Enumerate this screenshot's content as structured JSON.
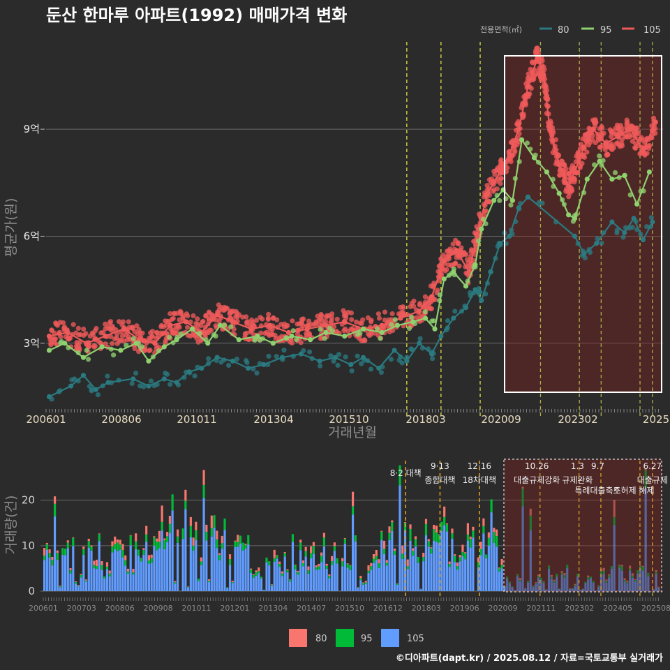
{
  "chart_data": [
    {
      "type": "scatter-line",
      "title": "둔산 한마루 아파트(1992) 매매가격 변화",
      "xlabel": "거래년월",
      "ylabel": "평균가(원)",
      "x_ticks": [
        "200601",
        "200806",
        "201011",
        "201304",
        "201510",
        "201803",
        "202009",
        "202302",
        "2025"
      ],
      "y_ticks": [
        {
          "label": "3억",
          "value": 3
        },
        {
          "label": "6억",
          "value": 6
        },
        {
          "label": "9억",
          "value": 9
        }
      ],
      "ylim": [
        1.0,
        11.8
      ],
      "x_range": [
        "2006-01",
        "2025-08"
      ],
      "legend_title": "전용면적(㎡)",
      "series": [
        {
          "name": "80",
          "color": "#2a7a80",
          "points": [
            [
              2006.1,
              1.5
            ],
            [
              2006.8,
              1.8
            ],
            [
              2007.2,
              2.1
            ],
            [
              2007.6,
              1.7
            ],
            [
              2008.0,
              1.9
            ],
            [
              2008.8,
              2.0
            ],
            [
              2009.3,
              1.8
            ],
            [
              2009.8,
              2.0
            ],
            [
              2010.2,
              1.9
            ],
            [
              2010.6,
              2.2
            ],
            [
              2011.0,
              2.3
            ],
            [
              2011.5,
              2.6
            ],
            [
              2012.0,
              2.5
            ],
            [
              2012.5,
              2.3
            ],
            [
              2013.0,
              2.4
            ],
            [
              2013.6,
              2.6
            ],
            [
              2014.2,
              2.7
            ],
            [
              2014.8,
              2.5
            ],
            [
              2015.3,
              2.6
            ],
            [
              2015.8,
              2.4
            ],
            [
              2016.2,
              2.6
            ],
            [
              2016.7,
              2.3
            ],
            [
              2017.2,
              2.8
            ],
            [
              2017.6,
              2.5
            ],
            [
              2018.0,
              3.0
            ],
            [
              2018.4,
              2.7
            ],
            [
              2018.7,
              3.2
            ],
            [
              2019.1,
              3.7
            ],
            [
              2019.5,
              4.0
            ],
            [
              2019.8,
              4.5
            ],
            [
              2020.0,
              4.2
            ],
            [
              2020.3,
              5.0
            ],
            [
              2020.6,
              5.8
            ],
            [
              2020.9,
              6.0
            ],
            [
              2021.2,
              6.8
            ],
            [
              2021.5,
              7.1
            ],
            [
              2023.0,
              6.0
            ],
            [
              2023.3,
              5.5
            ],
            [
              2023.7,
              5.8
            ],
            [
              2024.2,
              6.4
            ],
            [
              2024.6,
              6.1
            ],
            [
              2024.9,
              6.5
            ],
            [
              2025.2,
              5.9
            ],
            [
              2025.5,
              6.4
            ]
          ]
        },
        {
          "name": "95",
          "color": "#8fd16f",
          "points": [
            [
              2006.1,
              2.8
            ],
            [
              2006.6,
              3.0
            ],
            [
              2007.2,
              2.6
            ],
            [
              2007.8,
              2.9
            ],
            [
              2008.4,
              2.8
            ],
            [
              2008.9,
              3.0
            ],
            [
              2009.3,
              2.5
            ],
            [
              2009.8,
              2.9
            ],
            [
              2010.2,
              3.1
            ],
            [
              2010.7,
              3.4
            ],
            [
              2011.2,
              3.0
            ],
            [
              2011.6,
              3.5
            ],
            [
              2012.2,
              3.1
            ],
            [
              2012.8,
              3.2
            ],
            [
              2013.3,
              3.0
            ],
            [
              2013.9,
              3.2
            ],
            [
              2014.5,
              3.1
            ],
            [
              2015.0,
              3.3
            ],
            [
              2015.6,
              3.2
            ],
            [
              2016.2,
              3.4
            ],
            [
              2016.8,
              3.3
            ],
            [
              2017.3,
              3.5
            ],
            [
              2017.8,
              3.6
            ],
            [
              2018.2,
              3.7
            ],
            [
              2018.5,
              3.4
            ],
            [
              2018.8,
              4.8
            ],
            [
              2019.1,
              5.0
            ],
            [
              2019.5,
              4.6
            ],
            [
              2019.8,
              5.2
            ],
            [
              2020.0,
              6.2
            ],
            [
              2020.4,
              7.0
            ],
            [
              2020.7,
              7.3
            ],
            [
              2021.0,
              7.0
            ],
            [
              2021.3,
              8.7
            ],
            [
              2021.7,
              8.2
            ],
            [
              2022.1,
              7.8
            ],
            [
              2022.5,
              7.2
            ],
            [
              2022.8,
              6.6
            ],
            [
              2023.0,
              6.5
            ],
            [
              2023.4,
              7.6
            ],
            [
              2023.8,
              8.1
            ],
            [
              2024.2,
              7.6
            ],
            [
              2024.6,
              7.7
            ],
            [
              2025.0,
              6.9
            ],
            [
              2025.4,
              7.8
            ]
          ]
        },
        {
          "name": "105",
          "color": "#f05a5a",
          "points": [
            [
              2006.1,
              3.2
            ],
            [
              2006.7,
              3.3
            ],
            [
              2007.3,
              3.0
            ],
            [
              2007.9,
              3.2
            ],
            [
              2008.5,
              3.4
            ],
            [
              2009.0,
              3.1
            ],
            [
              2009.5,
              3.0
            ],
            [
              2010.0,
              3.5
            ],
            [
              2010.5,
              3.6
            ],
            [
              2011.0,
              3.3
            ],
            [
              2011.5,
              3.8
            ],
            [
              2012.0,
              3.6
            ],
            [
              2012.6,
              3.4
            ],
            [
              2013.2,
              3.5
            ],
            [
              2013.8,
              3.3
            ],
            [
              2014.4,
              3.4
            ],
            [
              2015.0,
              3.5
            ],
            [
              2015.6,
              3.6
            ],
            [
              2016.2,
              3.4
            ],
            [
              2016.8,
              3.5
            ],
            [
              2017.4,
              3.7
            ],
            [
              2018.0,
              3.9
            ],
            [
              2018.4,
              4.3
            ],
            [
              2018.8,
              5.3
            ],
            [
              2019.2,
              5.6
            ],
            [
              2019.6,
              5.0
            ],
            [
              2019.9,
              6.2
            ],
            [
              2020.2,
              7.2
            ],
            [
              2020.6,
              7.8
            ],
            [
              2020.9,
              8.3
            ],
            [
              2021.2,
              9.0
            ],
            [
              2021.5,
              10.2
            ],
            [
              2021.8,
              11.0
            ],
            [
              2022.0,
              10.5
            ],
            [
              2022.2,
              9.0
            ],
            [
              2022.5,
              8.0
            ],
            [
              2022.8,
              7.4
            ],
            [
              2023.0,
              7.8
            ],
            [
              2023.3,
              8.5
            ],
            [
              2023.6,
              9.0
            ],
            [
              2024.0,
              8.6
            ],
            [
              2024.4,
              8.8
            ],
            [
              2024.8,
              9.0
            ],
            [
              2025.2,
              8.4
            ],
            [
              2025.6,
              9.2
            ]
          ]
        }
      ],
      "policy_lines_years": [
        2017.6,
        2018.7,
        2019.96,
        2021.9,
        2023.15,
        2023.85,
        2025.1,
        2025.5
      ],
      "highlight_region": {
        "from": 2020.7,
        "to": 2025.75
      }
    },
    {
      "type": "bar",
      "subtype": "stacked",
      "ylabel": "거래량(건)",
      "x_ticks": [
        "200601",
        "200703",
        "200806",
        "200908",
        "201011",
        "201201",
        "201304",
        "201407",
        "201510",
        "201612",
        "201803",
        "201906",
        "202009",
        "202111",
        "202302",
        "202405",
        "202508"
      ],
      "y_ticks": [
        0,
        10,
        20
      ],
      "ylim": [
        0,
        29
      ],
      "legend": [
        {
          "name": "80",
          "color": "#f8766d"
        },
        {
          "name": "95",
          "color": "#00ba38"
        },
        {
          "name": "105",
          "color": "#619cff"
        }
      ],
      "annotations": [
        {
          "x": 2017.6,
          "lines": [
            "8·2 대책"
          ]
        },
        {
          "x": 2018.7,
          "lines": [
            "9·13",
            "종합대책"
          ]
        },
        {
          "x": 2019.96,
          "lines": [
            "12·16",
            "18차대책"
          ]
        },
        {
          "x": 2021.8,
          "lines": [
            "10.26",
            "대출규제강화"
          ]
        },
        {
          "x": 2023.1,
          "lines": [
            "1.3",
            "규제완화"
          ]
        },
        {
          "x": 2023.75,
          "lines": [
            "9.7",
            "특례대출축소"
          ]
        },
        {
          "x": 2024.9,
          "lines": [
            "토허제 해제"
          ]
        },
        {
          "x": 2025.5,
          "lines": [
            "6.27",
            "대출규제"
          ]
        }
      ],
      "highlight_region": {
        "from": 2020.7,
        "to": 2025.75
      }
    }
  ],
  "footer": {
    "credit": "©디아파트(dapt.kr) / 2025.08.12 / 자료=국토교통부 실거래가"
  }
}
